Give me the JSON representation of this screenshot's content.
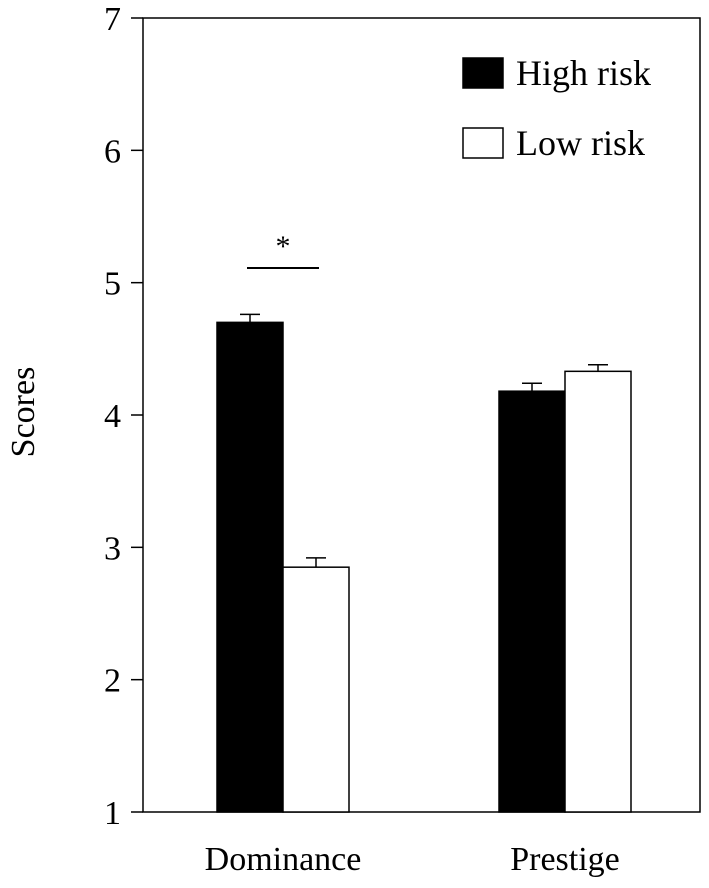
{
  "chart_data": {
    "type": "bar",
    "title": "",
    "xlabel": "",
    "ylabel": "Scores",
    "ylim": [
      1,
      7
    ],
    "yticks": [
      1,
      2,
      3,
      4,
      5,
      6,
      7
    ],
    "categories": [
      "Dominance",
      "Prestige"
    ],
    "series": [
      {
        "name": "High risk",
        "values": [
          4.7,
          4.18
        ],
        "errors": [
          0.06,
          0.06
        ],
        "fill": "#000000"
      },
      {
        "name": "Low risk",
        "values": [
          2.85,
          4.33
        ],
        "errors": [
          0.07,
          0.05
        ],
        "fill": "#ffffff"
      }
    ],
    "legend": {
      "placement": "top-right"
    },
    "grid": false,
    "annotations": [
      {
        "text": "*",
        "category": "Dominance",
        "type": "significance"
      }
    ]
  }
}
